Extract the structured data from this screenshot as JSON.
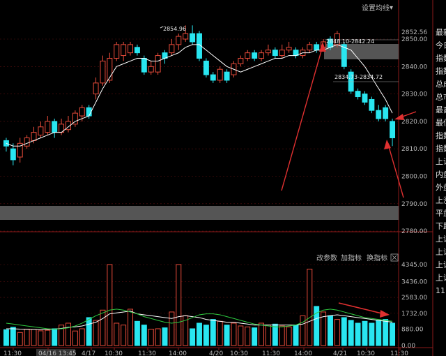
{
  "toolbar": {
    "settings_label": "设置均线",
    "params_label": "改参数",
    "add_indicator_label": "加指标",
    "switch_indicator_label": "换指标"
  },
  "right_panel": {
    "labels": [
      "最新",
      "今日",
      "指数",
      "指数",
      "总成",
      "总市",
      "最高",
      "最低",
      "指数",
      "指数",
      "上证",
      "内盘",
      "外盘",
      "上涨",
      "平盘",
      "下跌",
      "上证",
      "上证",
      "上证",
      "上证",
      "11:"
    ]
  },
  "chart_data": {
    "type": "candlestick",
    "price_axis": {
      "labels": [
        "2852.56",
        "2850.00",
        "2840.00",
        "2830.00",
        "2820.00",
        "2810.00",
        "2800.00",
        "2790.00",
        "2780.00"
      ]
    },
    "volume_axis": {
      "labels": [
        "4345.00",
        "3436.00",
        "2583.00",
        "1732.00",
        "880.00",
        "0.00"
      ]
    },
    "annotations": [
      "2854.96",
      "2848.10-2842.24",
      "2834.73-2834.72"
    ],
    "x_labels": [
      "11:30",
      "04/16 13:45",
      "4/17",
      "10:30",
      "11:30",
      "14:00",
      "4/20",
      "10:30",
      "11:30",
      "14:00",
      "4/21",
      "10:30",
      "11:30"
    ],
    "candles": [
      {
        "o": 2813.0,
        "c": 2811.0,
        "h": 2814,
        "l": 2809
      },
      {
        "o": 2810.0,
        "c": 2806.0,
        "h": 2812,
        "l": 2804
      },
      {
        "o": 2807.0,
        "c": 2812.0,
        "h": 2814,
        "l": 2805
      },
      {
        "o": 2811.0,
        "c": 2814.0,
        "h": 2815,
        "l": 2810
      },
      {
        "o": 2813.0,
        "c": 2816.0,
        "h": 2818,
        "l": 2812
      },
      {
        "o": 2815.0,
        "c": 2818.0,
        "h": 2820,
        "l": 2814
      },
      {
        "o": 2816.0,
        "c": 2820.0,
        "h": 2822,
        "l": 2815
      },
      {
        "o": 2820.0,
        "c": 2816.0,
        "h": 2821,
        "l": 2814
      },
      {
        "o": 2816.0,
        "c": 2819.0,
        "h": 2821,
        "l": 2815
      },
      {
        "o": 2817.0,
        "c": 2820.0,
        "h": 2822,
        "l": 2816
      },
      {
        "o": 2819.0,
        "c": 2823.0,
        "h": 2824,
        "l": 2818
      },
      {
        "o": 2822.0,
        "c": 2825.0,
        "h": 2826,
        "l": 2820
      },
      {
        "o": 2825.0,
        "c": 2822.0,
        "h": 2826,
        "l": 2821
      },
      {
        "o": 2830.0,
        "c": 2834.0,
        "h": 2836,
        "l": 2828
      },
      {
        "o": 2834.0,
        "c": 2842.0,
        "h": 2844,
        "l": 2833
      },
      {
        "o": 2835.0,
        "c": 2843.0,
        "h": 2845,
        "l": 2834
      },
      {
        "o": 2843.0,
        "c": 2848.0,
        "h": 2849,
        "l": 2842
      },
      {
        "o": 2844.0,
        "c": 2848.0,
        "h": 2849,
        "l": 2842
      },
      {
        "o": 2845.0,
        "c": 2848.0,
        "h": 2849,
        "l": 2844
      },
      {
        "o": 2847.0,
        "c": 2845.0,
        "h": 2848,
        "l": 2844
      },
      {
        "o": 2843.0,
        "c": 2838.0,
        "h": 2844,
        "l": 2837
      },
      {
        "o": 2838.0,
        "c": 2840.0,
        "h": 2842,
        "l": 2837
      },
      {
        "o": 2838.0,
        "c": 2844.0,
        "h": 2845,
        "l": 2837
      },
      {
        "o": 2845.0,
        "c": 2843.0,
        "h": 2846,
        "l": 2841
      },
      {
        "o": 2845.0,
        "c": 2848.0,
        "h": 2850,
        "l": 2844
      },
      {
        "o": 2848.0,
        "c": 2851.0,
        "h": 2852,
        "l": 2846
      },
      {
        "o": 2850.0,
        "c": 2852.0,
        "h": 2855,
        "l": 2849
      },
      {
        "o": 2852.0,
        "c": 2849.0,
        "h": 2855,
        "l": 2848
      },
      {
        "o": 2852.0,
        "c": 2843.0,
        "h": 2853,
        "l": 2842
      },
      {
        "o": 2842.0,
        "c": 2837.0,
        "h": 2843,
        "l": 2836
      },
      {
        "o": 2837.0,
        "c": 2835.0,
        "h": 2838,
        "l": 2834
      },
      {
        "o": 2835.0,
        "c": 2839.0,
        "h": 2840,
        "l": 2834
      },
      {
        "o": 2838.0,
        "c": 2835.0,
        "h": 2839,
        "l": 2834
      },
      {
        "o": 2837.0,
        "c": 2841.0,
        "h": 2842,
        "l": 2836
      },
      {
        "o": 2841.0,
        "c": 2843.0,
        "h": 2844,
        "l": 2840
      },
      {
        "o": 2843.0,
        "c": 2845.0,
        "h": 2846,
        "l": 2842
      },
      {
        "o": 2845.0,
        "c": 2843.0,
        "h": 2846,
        "l": 2842
      },
      {
        "o": 2843.0,
        "c": 2845.0,
        "h": 2846,
        "l": 2842
      },
      {
        "o": 2845.0,
        "c": 2846.0,
        "h": 2848,
        "l": 2844
      },
      {
        "o": 2846.0,
        "c": 2844.0,
        "h": 2847,
        "l": 2843
      },
      {
        "o": 2844.0,
        "c": 2846.0,
        "h": 2848,
        "l": 2843
      },
      {
        "o": 2846.0,
        "c": 2847.0,
        "h": 2849,
        "l": 2845
      },
      {
        "o": 2846.0,
        "c": 2844.0,
        "h": 2847,
        "l": 2843
      },
      {
        "o": 2844.0,
        "c": 2846.0,
        "h": 2847,
        "l": 2843
      },
      {
        "o": 2846.0,
        "c": 2848.0,
        "h": 2849,
        "l": 2845
      },
      {
        "o": 2848.0,
        "c": 2846.0,
        "h": 2849,
        "l": 2845
      },
      {
        "o": 2847.0,
        "c": 2849.0,
        "h": 2850,
        "l": 2846
      },
      {
        "o": 2850.0,
        "c": 2847.0,
        "h": 2851,
        "l": 2846
      },
      {
        "o": 2848.0,
        "c": 2852.0,
        "h": 2853,
        "l": 2847
      },
      {
        "o": 2848.0,
        "c": 2840.0,
        "h": 2849,
        "l": 2839
      },
      {
        "o": 2838.0,
        "c": 2831.0,
        "h": 2839,
        "l": 2830
      },
      {
        "o": 2831.0,
        "c": 2829.0,
        "h": 2832,
        "l": 2828
      },
      {
        "o": 2830.0,
        "c": 2827.0,
        "h": 2831,
        "l": 2826
      },
      {
        "o": 2828.0,
        "c": 2824.0,
        "h": 2829,
        "l": 2823
      },
      {
        "o": 2824.0,
        "c": 2821.0,
        "h": 2826,
        "l": 2820
      },
      {
        "o": 2825.0,
        "c": 2821.0,
        "h": 2826,
        "l": 2820
      },
      {
        "o": 2820.0,
        "c": 2814.0,
        "h": 2821,
        "l": 2811
      }
    ],
    "ma": [
      2812,
      2811,
      2811,
      2812,
      2813,
      2814,
      2815,
      2816,
      2816,
      2818,
      2820,
      2821,
      2822,
      2827,
      2832,
      2836,
      2840,
      2841,
      2842,
      2843,
      2843,
      2842,
      2842,
      2843,
      2844,
      2845,
      2847,
      2848,
      2848,
      2846,
      2844,
      2842,
      2840,
      2839,
      2838,
      2839,
      2840,
      2841,
      2842,
      2843,
      2843,
      2844,
      2844,
      2845,
      2845,
      2846,
      2846,
      2847,
      2848,
      2847,
      2846,
      2843,
      2840,
      2836,
      2832,
      2828,
      2823
    ],
    "volumes": [
      850,
      980,
      700,
      880,
      860,
      790,
      820,
      900,
      1100,
      1200,
      780,
      900,
      1500,
      1350,
      1900,
      4345,
      1200,
      1100,
      1950,
      1300,
      1100,
      880,
      900,
      950,
      1800,
      4345,
      1600,
      900,
      1200,
      1100,
      1400,
      1300,
      1100,
      1200,
      1050,
      1000,
      950,
      1200,
      1100,
      1150,
      1050,
      1000,
      1100,
      1600,
      4100,
      2100,
      1800,
      1600,
      1400,
      1500,
      1350,
      1200,
      1300,
      1200,
      1350,
      1400,
      1200
    ],
    "vol_ma1": [
      900,
      900,
      880,
      870,
      860,
      850,
      860,
      880,
      920,
      980,
      1000,
      1050,
      1150,
      1250,
      1450,
      1700,
      1750,
      1800,
      1850,
      1700,
      1650,
      1600,
      1550,
      1500,
      1450,
      1550,
      1600,
      1550,
      1500,
      1400,
      1350,
      1300,
      1250,
      1250,
      1200,
      1150,
      1100,
      1100,
      1100,
      1100,
      1100,
      1100,
      1100,
      1150,
      1300,
      1450,
      1550,
      1600,
      1650,
      1600,
      1550,
      1500,
      1450,
      1400,
      1350,
      1300,
      1250
    ],
    "vol_ma2": [
      1200,
      1150,
      1100,
      1050,
      1000,
      950,
      900,
      880,
      900,
      950,
      1050,
      1200,
      1400,
      1600,
      1750,
      1900,
      1950,
      1900,
      1800,
      1700,
      1550,
      1450,
      1350,
      1250,
      1200,
      1250,
      1350,
      1500,
      1650,
      1700,
      1700,
      1650,
      1550,
      1450,
      1350,
      1250,
      1150,
      1100,
      1050,
      1000,
      1000,
      1050,
      1100,
      1250,
      1500,
      1750,
      1900,
      1950,
      1900,
      1800,
      1700,
      1600,
      1500,
      1450,
      1400,
      1350,
      1300
    ]
  },
  "colors": {
    "up": "#e84b3a",
    "down": "#29e6f0",
    "ma": "#ffffff",
    "ma2": "#2ecc40",
    "arrow": "#e03030",
    "grid": "#8b1a1a"
  }
}
